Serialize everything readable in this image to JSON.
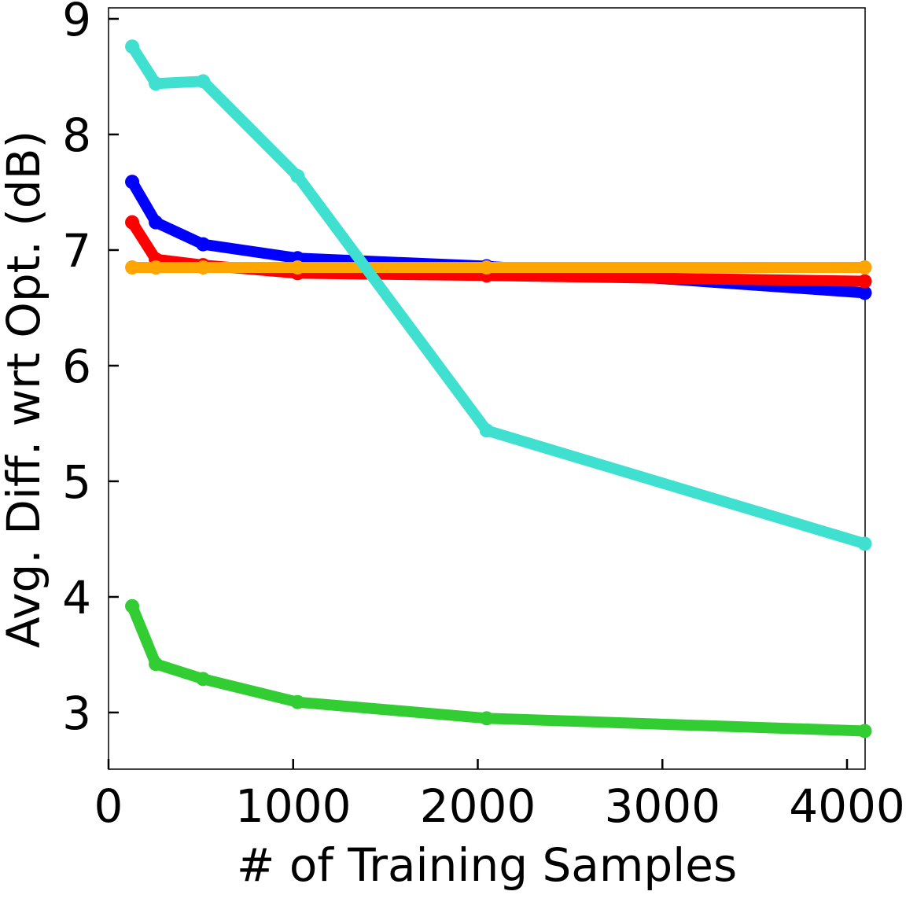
{
  "chart_data": {
    "type": "line",
    "x_label": "# of Training Samples",
    "y_label": "Avg. Diff. wrt Opt. (dB)",
    "x": [
      128,
      256,
      512,
      1024,
      2048,
      4096
    ],
    "series": [
      {
        "color": "#0000ff",
        "values": [
          7.59,
          7.24,
          7.05,
          6.93,
          6.86,
          6.63
        ]
      },
      {
        "color": "#ff0000",
        "values": [
          7.24,
          6.92,
          6.87,
          6.8,
          6.78,
          6.73
        ]
      },
      {
        "color": "#ffa500",
        "values": [
          6.85,
          6.85,
          6.85,
          6.85,
          6.85,
          6.85
        ]
      },
      {
        "color": "#40e0d0",
        "values": [
          8.76,
          8.44,
          8.46,
          7.64,
          5.44,
          4.46
        ]
      },
      {
        "color": "#32cd32",
        "values": [
          3.92,
          3.42,
          3.29,
          3.09,
          2.95,
          2.84
        ]
      }
    ],
    "xlim": [
      0,
      4098
    ],
    "ylim": [
      2.51,
      9.095
    ],
    "xticks": [
      0,
      1000,
      2000,
      3000,
      4000
    ],
    "yticks": [
      3,
      4,
      5,
      6,
      7,
      8,
      9
    ],
    "grid": false
  }
}
